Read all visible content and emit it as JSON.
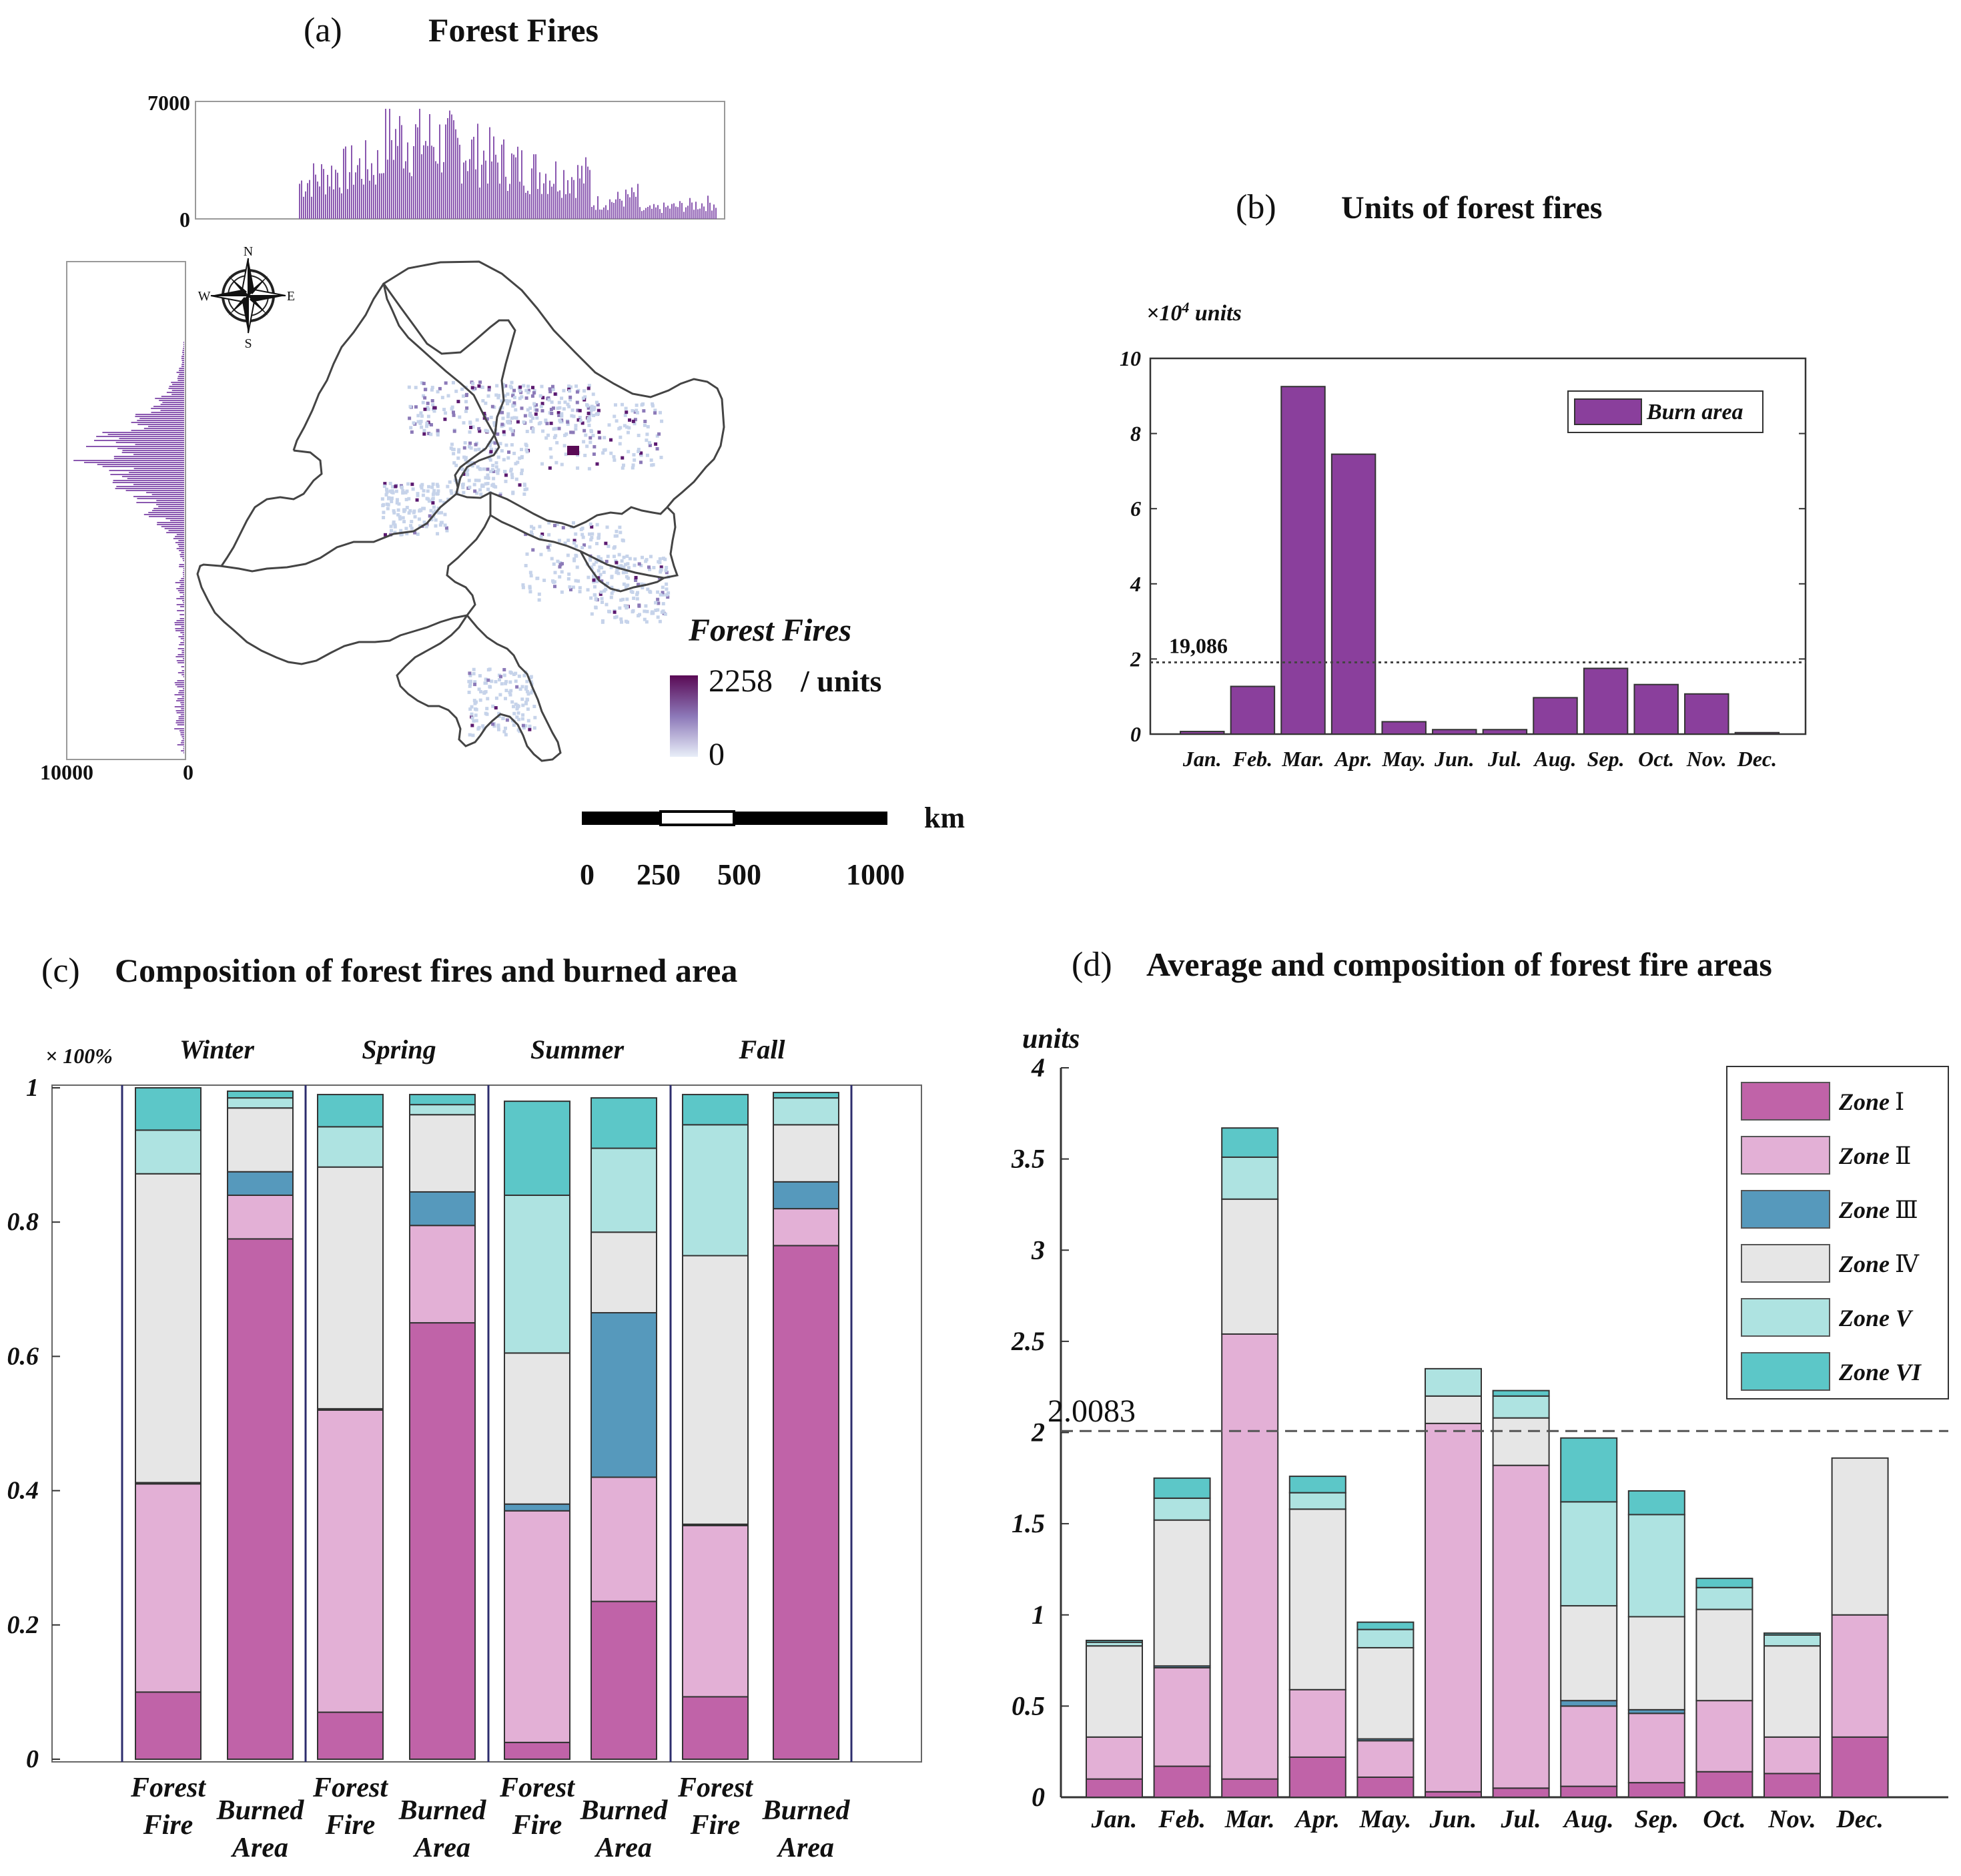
{
  "panel_a": {
    "label": "(a)",
    "title": "Forest Fires",
    "top_hist_ticks": [
      "7000",
      "0"
    ],
    "left_hist_ticks": [
      "10000",
      "0"
    ],
    "compass": {
      "n": "N",
      "s": "S",
      "w": "W",
      "e": "E"
    },
    "legend_title": "Forest Fires",
    "legend_max": "2258",
    "legend_unit": "/ units",
    "legend_min": "0",
    "scale_unit": "km",
    "scale_ticks": [
      "0",
      "250",
      "500",
      "1000"
    ]
  },
  "panel_b": {
    "label": "(b)",
    "title": "Units of forest fires",
    "unit_prefix": "×10",
    "unit_exp": "4",
    "unit_suffix": " units",
    "ref_label": "19,086"
  },
  "panel_c": {
    "label": "(c)",
    "title": "Composition of forest fires and burned area",
    "ylabel": "× 100%"
  },
  "panel_d": {
    "label": "(d)",
    "title": "Average and composition of forest fire areas",
    "ylabel": "units",
    "ref_label": "2.0083"
  },
  "chart_data": [
    {
      "id": "b",
      "type": "bar",
      "title": "Units of forest fires",
      "ylabel": "×10⁴ units",
      "categories": [
        "Jan.",
        "Feb.",
        "Mar.",
        "Apr.",
        "May.",
        "Jun.",
        "Jul.",
        "Aug.",
        "Sep.",
        "Oct.",
        "Nov.",
        "Dec."
      ],
      "series": [
        {
          "name": "Burn area",
          "values": [
            0.07,
            1.27,
            9.25,
            7.45,
            0.33,
            0.12,
            0.12,
            0.97,
            1.75,
            1.32,
            1.07,
            0.04
          ]
        }
      ],
      "ylim": [
        0,
        10
      ],
      "yticks": [
        "0",
        "2",
        "4",
        "6",
        "8",
        "10"
      ],
      "reference_line": 1.9086,
      "reference_label": "19,086",
      "color": "#8a3f9c",
      "legend": "top-right"
    },
    {
      "id": "c",
      "type": "bar",
      "stacked": true,
      "title": "Composition of forest fires and burned area",
      "ylabel": "× 100%",
      "groups": [
        "Winter",
        "Spring",
        "Summer",
        "Fall"
      ],
      "categories": [
        "Forest Fire",
        "Burned Area",
        "Forest Fire",
        "Burned Area",
        "Forest Fire",
        "Burned Area",
        "Forest Fire",
        "Burned Area"
      ],
      "series": [
        {
          "name": "Zone I",
          "values": [
            0.1,
            0.775,
            0.07,
            0.65,
            0.025,
            0.235,
            0.093,
            0.765
          ]
        },
        {
          "name": "Zone II",
          "values": [
            0.31,
            0.065,
            0.45,
            0.145,
            0.345,
            0.185,
            0.255,
            0.055
          ]
        },
        {
          "name": "Zone III",
          "values": [
            0.002,
            0.035,
            0.002,
            0.05,
            0.01,
            0.245,
            0.002,
            0.04
          ]
        },
        {
          "name": "Zone IV",
          "values": [
            0.46,
            0.095,
            0.36,
            0.115,
            0.225,
            0.12,
            0.4,
            0.085
          ]
        },
        {
          "name": "Zone V",
          "values": [
            0.065,
            0.015,
            0.06,
            0.015,
            0.235,
            0.125,
            0.195,
            0.04
          ]
        },
        {
          "name": "Zone VI",
          "values": [
            0.063,
            0.01,
            0.048,
            0.015,
            0.14,
            0.075,
            0.045,
            0.008
          ]
        }
      ],
      "ylim": [
        0,
        1
      ],
      "yticks": [
        "0",
        "0.2",
        "0.4",
        "0.6",
        "0.8",
        "1"
      ]
    },
    {
      "id": "d",
      "type": "bar",
      "stacked": true,
      "title": "Average and composition of forest fire areas",
      "ylabel": "units",
      "categories": [
        "Jan.",
        "Feb.",
        "Mar.",
        "Apr.",
        "May.",
        "Jun.",
        "Jul.",
        "Aug.",
        "Sep.",
        "Oct.",
        "Nov.",
        "Dec."
      ],
      "series": [
        {
          "name": "Zone I",
          "values": [
            0.1,
            0.17,
            0.1,
            0.22,
            0.11,
            0.03,
            0.05,
            0.06,
            0.08,
            0.14,
            0.13,
            0.33
          ]
        },
        {
          "name": "Zone II",
          "values": [
            0.23,
            0.54,
            2.44,
            0.37,
            0.2,
            2.02,
            1.77,
            0.44,
            0.38,
            0.39,
            0.2,
            0.67
          ]
        },
        {
          "name": "Zone III",
          "values": [
            0.0,
            0.01,
            0.0,
            0.0,
            0.01,
            0.0,
            0.0,
            0.03,
            0.02,
            0.0,
            0.0,
            0.0
          ]
        },
        {
          "name": "Zone IV",
          "values": [
            0.5,
            0.8,
            0.74,
            0.99,
            0.5,
            0.15,
            0.26,
            0.52,
            0.51,
            0.5,
            0.5,
            0.86
          ]
        },
        {
          "name": "Zone V",
          "values": [
            0.02,
            0.12,
            0.23,
            0.09,
            0.1,
            0.15,
            0.12,
            0.57,
            0.56,
            0.12,
            0.06,
            0.0
          ]
        },
        {
          "name": "Zone VI",
          "values": [
            0.01,
            0.11,
            0.16,
            0.09,
            0.04,
            0.0,
            0.03,
            0.35,
            0.13,
            0.05,
            0.01,
            0.0
          ]
        }
      ],
      "ylim": [
        0,
        4
      ],
      "yticks": [
        "0",
        "0.5",
        "1",
        "1.5",
        "2",
        "2.5",
        "3",
        "3.5",
        "4"
      ],
      "reference_line": 2.0083,
      "reference_label": "2.0083",
      "legend": "top-right"
    }
  ],
  "zone_legend": [
    {
      "prefix": "Zone",
      "suffix": "Ⅰ",
      "color": "#c063a8"
    },
    {
      "prefix": "Zone",
      "suffix": "Ⅱ",
      "color": "#e3b0d6"
    },
    {
      "prefix": "Zone",
      "suffix": "Ⅲ",
      "color": "#5699bc"
    },
    {
      "prefix": "Zone",
      "suffix": "Ⅳ",
      "color": "#e6e6e6"
    },
    {
      "prefix": "Zone V",
      "suffix": "",
      "color": "#aee3e1"
    },
    {
      "prefix": "Zone VI",
      "suffix": "",
      "color": "#5cc7c8"
    }
  ]
}
